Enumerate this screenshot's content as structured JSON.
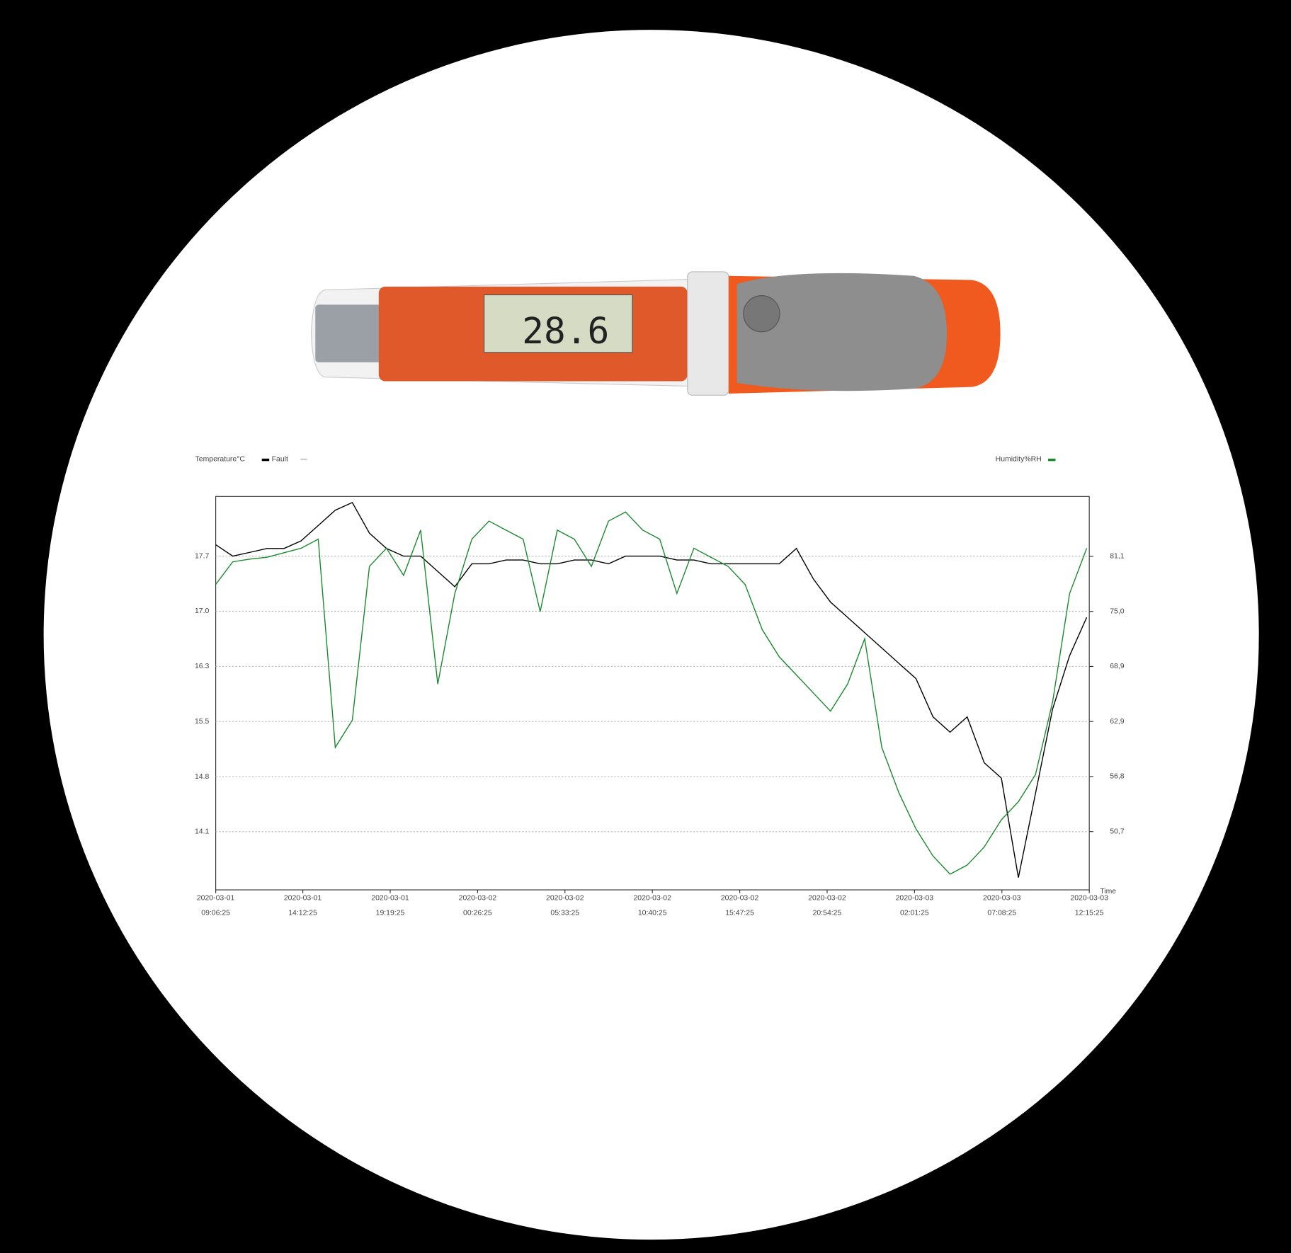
{
  "device": {
    "display": "28.6"
  },
  "chart_data": {
    "type": "line",
    "legend_left": "Temperature°C",
    "fault_label": "Fault",
    "x_label": "Time",
    "x": [
      "2020-03-01 09:06:25",
      "2020-03-01 10:06:25",
      "2020-03-01 11:06:25",
      "2020-03-01 12:06:25",
      "2020-03-01 13:06:25",
      "2020-03-01 14:06:25",
      "2020-03-01 15:06:25",
      "2020-03-01 16:06:25",
      "2020-03-01 17:06:25",
      "2020-03-01 18:06:25",
      "2020-03-01 19:06:25",
      "2020-03-01 20:06:25",
      "2020-03-01 21:06:25",
      "2020-03-01 22:06:25",
      "2020-03-01 23:06:25",
      "2020-03-02 00:06:25",
      "2020-03-02 01:06:25",
      "2020-03-02 02:06:25",
      "2020-03-02 03:06:25",
      "2020-03-02 04:06:25",
      "2020-03-02 05:06:25",
      "2020-03-02 06:06:25",
      "2020-03-02 07:06:25",
      "2020-03-02 08:06:25",
      "2020-03-02 09:06:25",
      "2020-03-02 10:06:25",
      "2020-03-02 11:06:25",
      "2020-03-02 12:06:25",
      "2020-03-02 13:06:25",
      "2020-03-02 14:06:25",
      "2020-03-02 15:06:25",
      "2020-03-02 16:06:25",
      "2020-03-02 17:06:25",
      "2020-03-02 18:06:25",
      "2020-03-02 19:06:25",
      "2020-03-02 20:06:25",
      "2020-03-02 21:06:25",
      "2020-03-02 22:06:25",
      "2020-03-02 23:06:25",
      "2020-03-03 00:06:25",
      "2020-03-03 01:06:25",
      "2020-03-03 02:06:25",
      "2020-03-03 03:06:25",
      "2020-03-03 04:06:25",
      "2020-03-03 05:06:25",
      "2020-03-03 06:06:25",
      "2020-03-03 07:06:25",
      "2020-03-03 08:06:25",
      "2020-03-03 09:06:25",
      "2020-03-03 10:06:25",
      "2020-03-03 11:06:25",
      "2020-03-03 12:06:25"
    ],
    "series": [
      {
        "name": "Temperature°C",
        "color": "#000000",
        "axis": "y",
        "values": [
          17.85,
          17.7,
          17.75,
          17.8,
          17.8,
          17.9,
          18.1,
          18.3,
          18.4,
          18.0,
          17.8,
          17.7,
          17.7,
          17.5,
          17.3,
          17.6,
          17.6,
          17.65,
          17.65,
          17.6,
          17.6,
          17.65,
          17.65,
          17.6,
          17.7,
          17.7,
          17.7,
          17.65,
          17.65,
          17.6,
          17.6,
          17.6,
          17.6,
          17.6,
          17.8,
          17.4,
          17.1,
          16.9,
          16.7,
          16.5,
          16.3,
          16.1,
          15.6,
          15.4,
          15.6,
          15.0,
          14.8,
          13.5,
          14.6,
          15.7,
          16.4,
          16.9
        ]
      },
      {
        "name": "Humidity%RH",
        "color": "#1a8a2e",
        "axis": "y2",
        "values": [
          78,
          80.5,
          80.8,
          81,
          81.5,
          82,
          83,
          60,
          63,
          80,
          82,
          79,
          84,
          67,
          77,
          83,
          85,
          84,
          83,
          75,
          84,
          83,
          80,
          85,
          86,
          84,
          83,
          77,
          82,
          81,
          80,
          78,
          73,
          70,
          68,
          66,
          64,
          67,
          72,
          60,
          55,
          51,
          48,
          46,
          47,
          49,
          52,
          54,
          57,
          65,
          77,
          82
        ]
      }
    ],
    "xlim": [
      "2020-03-01 09:06:25",
      "2020-03-03 12:15:25"
    ],
    "xticks": [
      "2020-03-01 09:06:25",
      "2020-03-01 14:12:25",
      "2020-03-01 19:19:25",
      "2020-03-02 00:26:25",
      "2020-03-02 05:33:25",
      "2020-03-02 10:40:25",
      "2020-03-02 15:47:25",
      "2020-03-02 20:54:25",
      "2020-03-03 02:01:25",
      "2020-03-03 07:08:25",
      "2020-03-03 12:15:25"
    ],
    "ylim": [
      13.34,
      18.48
    ],
    "yticks": [
      {
        "value": 14.1,
        "label": "14.1"
      },
      {
        "value": 14.82,
        "label": "14.8"
      },
      {
        "value": 15.54,
        "label": "15.5"
      },
      {
        "value": 16.26,
        "label": "16.3"
      },
      {
        "value": 16.98,
        "label": "17.0"
      },
      {
        "value": 17.7,
        "label": "17.7"
      }
    ],
    "y2lim": [
      44.26,
      87.72
    ],
    "y2ticks": [
      {
        "value": 50.7,
        "label": "50,7"
      },
      {
        "value": 56.78,
        "label": "56,8"
      },
      {
        "value": 62.86,
        "label": "62,9"
      },
      {
        "value": 68.94,
        "label": "68,9"
      },
      {
        "value": 75.02,
        "label": "75,0"
      },
      {
        "value": 81.1,
        "label": "81,1"
      }
    ],
    "grid": true
  }
}
